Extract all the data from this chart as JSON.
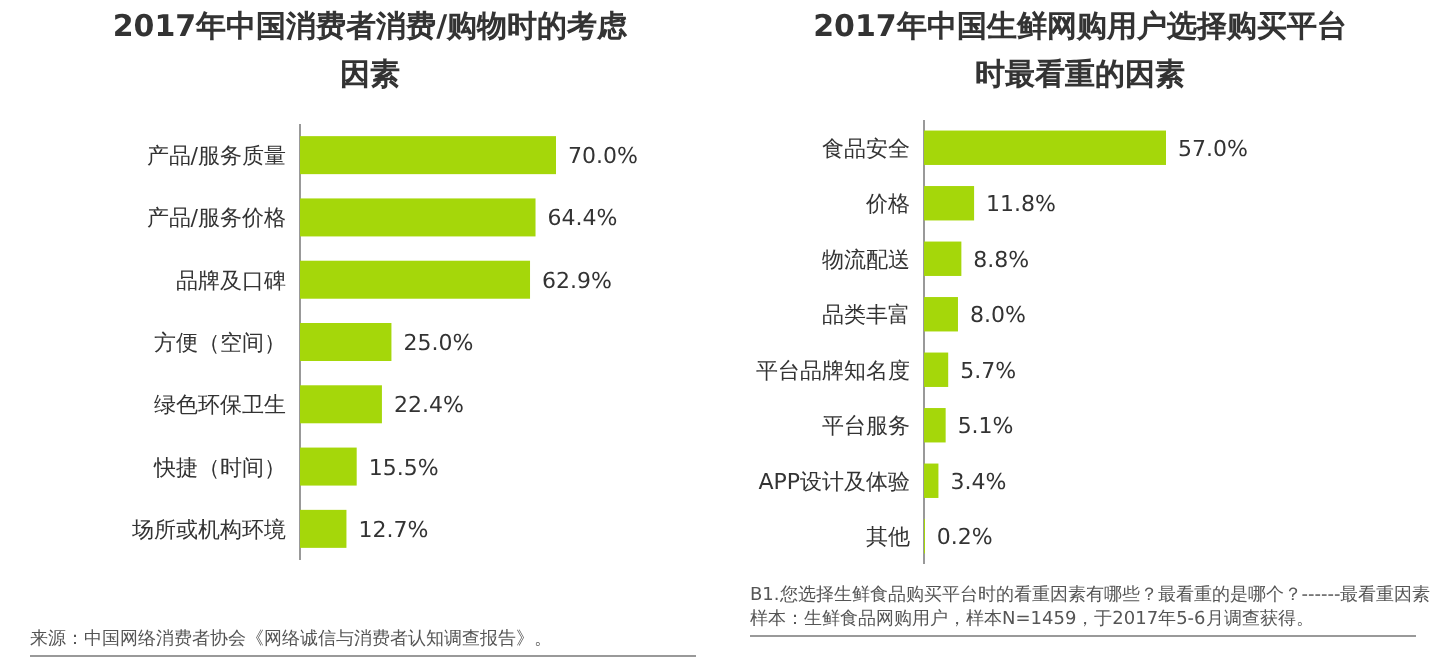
{
  "chart_data": [
    {
      "type": "bar",
      "orientation": "horizontal",
      "title": "2017年中国消费者消费/购物时的考虑因素",
      "categories": [
        "产品/服务质量",
        "产品/服务价格",
        "品牌及口碑",
        "方便（空间）",
        "绿色环保卫生",
        "快捷（时间）",
        "场所或机构环境"
      ],
      "values": [
        70.0,
        64.4,
        62.9,
        25.0,
        22.4,
        15.5,
        12.7
      ],
      "value_labels": [
        "70.0%",
        "64.4%",
        "62.9%",
        "25.0%",
        "22.4%",
        "15.5%",
        "12.7%"
      ],
      "color": "#a5d70a",
      "annotations": [
        "来源：中国网络消费者协会《网络诚信与消费者认知调查报告》。"
      ]
    },
    {
      "type": "bar",
      "orientation": "horizontal",
      "title": "2017年中国生鲜网购用户选择购买平台时最看重的因素",
      "categories": [
        "食品安全",
        "价格",
        "物流配送",
        "品类丰富",
        "平台品牌知名度",
        "平台服务",
        "APP设计及体验",
        "其他"
      ],
      "values": [
        57.0,
        11.8,
        8.8,
        8.0,
        5.7,
        5.1,
        3.4,
        0.2
      ],
      "value_labels": [
        "57.0%",
        "11.8%",
        "8.8%",
        "8.0%",
        "5.7%",
        "5.1%",
        "3.4%",
        "0.2%"
      ],
      "color": "#a5d70a",
      "annotations": [
        "B1.您选择生鲜食品购买平台时的看重因素有哪些？最看重的是哪个？------最看重因素",
        "样本：生鲜食品网购用户，样本N=1459，于2017年5-6月调查获得。"
      ]
    }
  ]
}
